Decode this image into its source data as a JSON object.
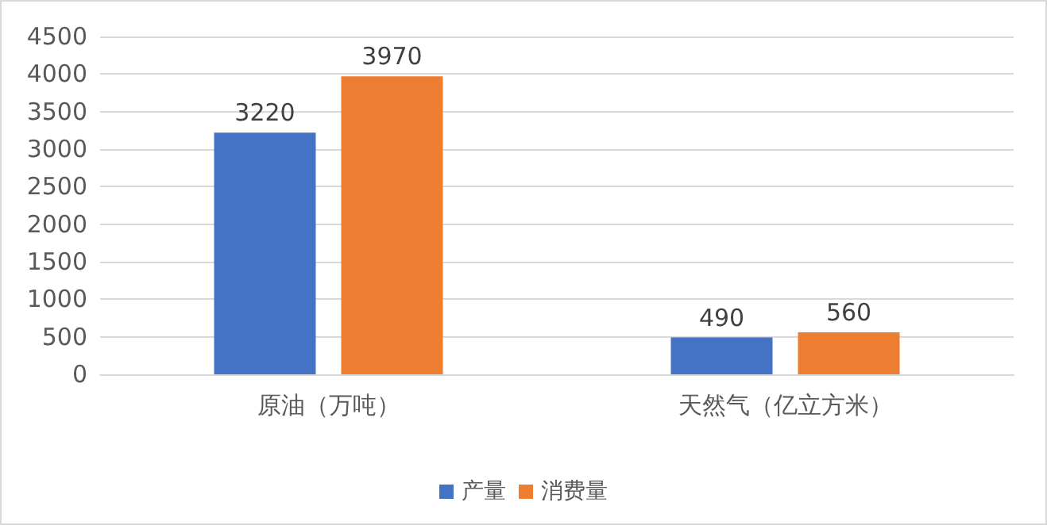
{
  "chart_data": {
    "type": "bar",
    "categories": [
      "原油（万吨）",
      "天然气（亿立方米）"
    ],
    "series": [
      {
        "name": "产量",
        "color": "#4472c4",
        "values": [
          3220,
          490
        ]
      },
      {
        "name": "消费量",
        "color": "#ed7d31",
        "values": [
          3970,
          560
        ]
      }
    ],
    "ylim": [
      0,
      4500
    ],
    "yticks": [
      0,
      500,
      1000,
      1500,
      2000,
      2500,
      3000,
      3500,
      4000,
      4500
    ],
    "grid": "y",
    "legend": "bottom",
    "data_labels": true
  }
}
